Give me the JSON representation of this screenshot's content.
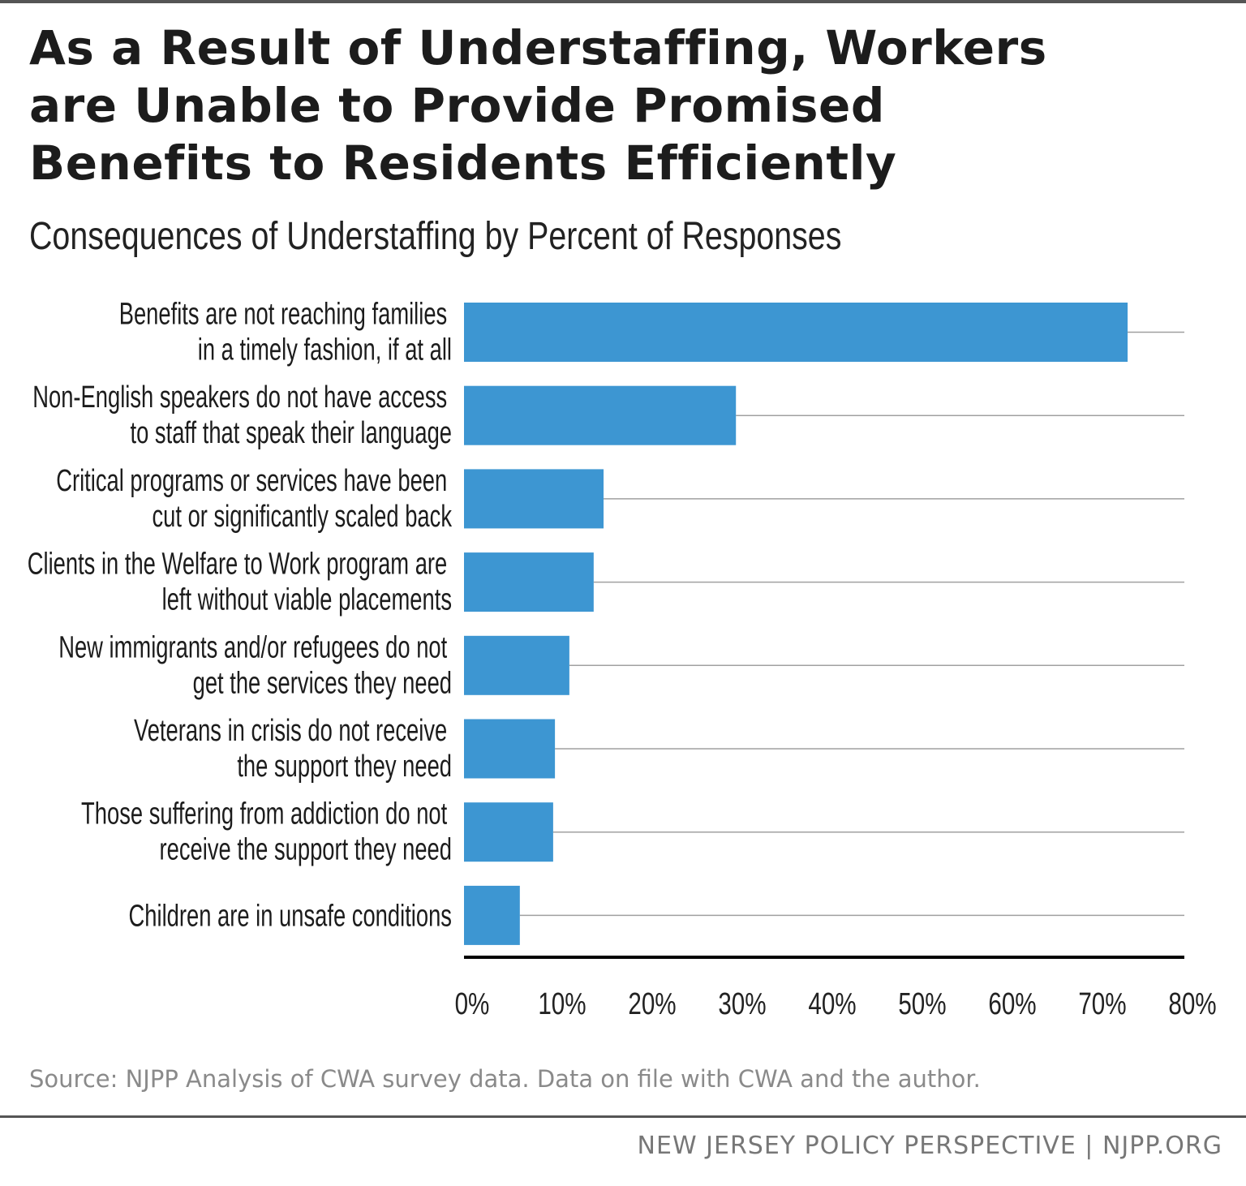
{
  "chart_data": {
    "type": "bar",
    "orientation": "horizontal",
    "title": "As a Result of Understaffing, Workers are Unable to Provide Promised Benefits to Residents Efficiently",
    "subtitle": "Consequences of Understaffing by Percent of Responses",
    "categories": [
      [
        "Benefits are not reaching families",
        "in a timely fashion, if at all"
      ],
      [
        "Non-English speakers do not have access",
        "to staff that speak their language"
      ],
      [
        "Critical programs or services have been",
        "cut or significantly scaled back"
      ],
      [
        "Clients in the Welfare to Work program are",
        "left without viable placements"
      ],
      [
        "New immigrants and/or refugees do not",
        "get the services they need"
      ],
      [
        "Veterans in crisis do not receive",
        "the support they need"
      ],
      [
        "Those suffering from addiction do not",
        "receive the support they need"
      ],
      [
        "Children are in unsafe conditions"
      ]
    ],
    "values": [
      73.7,
      30.2,
      15.5,
      14.4,
      11.7,
      10.1,
      9.9,
      6.2
    ],
    "xlim": [
      0,
      80
    ],
    "xticks": [
      "0%",
      "10%",
      "20%",
      "30%",
      "40%",
      "50%",
      "60%",
      "70%",
      "80%"
    ],
    "bar_color": "#3d96d2",
    "grid": "row guide lines"
  },
  "source": "Source: NJPP Analysis of CWA survey data. Data on file with CWA and the author.",
  "footer": "NEW JERSEY POLICY PERSPECTIVE | NJPP.ORG"
}
